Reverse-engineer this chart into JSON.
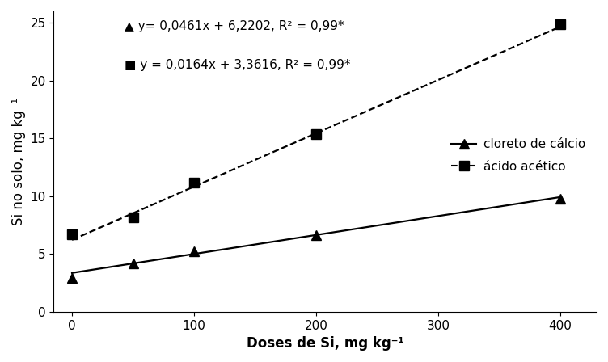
{
  "x_data": [
    0,
    50,
    100,
    200,
    400
  ],
  "y_cloreto": [
    2.9,
    4.2,
    5.2,
    6.6,
    9.8
  ],
  "y_acido": [
    6.7,
    8.2,
    11.2,
    15.4,
    24.9
  ],
  "eq_triangle": "▲ y= 0,0461x + 6,2202, R² = 0,99*",
  "eq_square": "■ y = 0,0164x + 3,3616, R² = 0,99*",
  "slope_cloreto": 0.0164,
  "intercept_cloreto": 3.3616,
  "slope_acido": 0.0461,
  "intercept_acido": 6.2202,
  "xlabel": "Doses de Si, mg kg⁻¹",
  "ylabel": "Si no solo, mg kg⁻¹",
  "xlim": [
    -15,
    430
  ],
  "ylim": [
    0,
    26
  ],
  "yticks": [
    0,
    5,
    10,
    15,
    20,
    25
  ],
  "xticks": [
    0,
    100,
    200,
    300,
    400
  ],
  "legend_cloreto": "cloreto de cálcio",
  "legend_acido": "ácido acético",
  "color": "#000000",
  "marker_triangle": "^",
  "marker_square": "s",
  "markersize": 8,
  "linewidth": 1.6,
  "fontsize_labels": 12,
  "fontsize_ticks": 11,
  "fontsize_legend": 11,
  "fontsize_eq": 11
}
